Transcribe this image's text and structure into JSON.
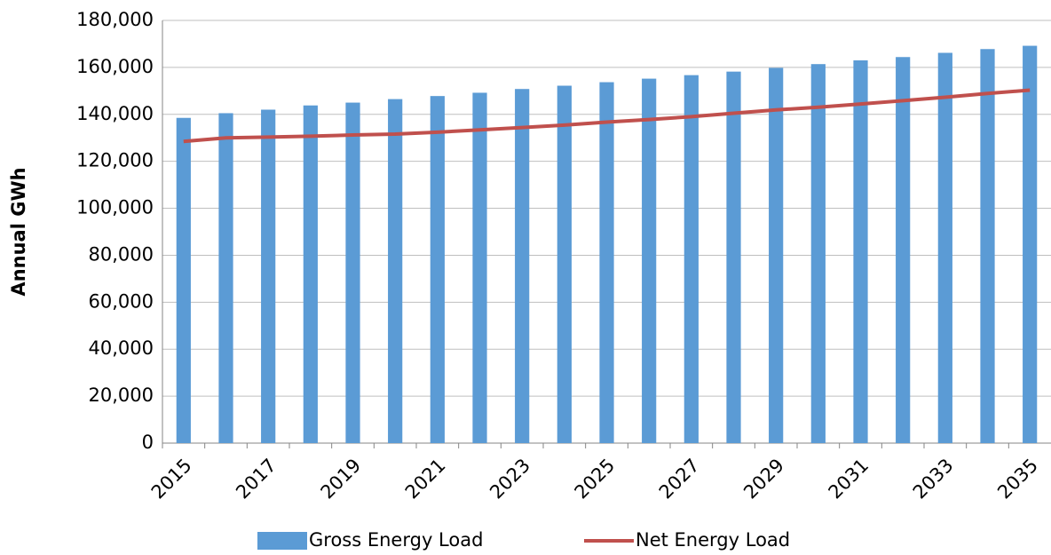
{
  "chart_data": {
    "type": "bar_line",
    "y_label": "Annual GWh",
    "categories": [
      "2015",
      null,
      "2017",
      null,
      "2019",
      null,
      "2021",
      null,
      "2023",
      null,
      "2025",
      null,
      "2027",
      null,
      "2029",
      null,
      "2031",
      null,
      "2033",
      null,
      "2035"
    ],
    "series": [
      {
        "name": "Gross Energy Load",
        "type": "bar",
        "color": "#5b9bd5",
        "values": [
          138500,
          140500,
          142000,
          143800,
          145000,
          146500,
          147800,
          149200,
          150800,
          152200,
          153700,
          155200,
          156700,
          158200,
          159800,
          161400,
          163000,
          164400,
          166200,
          167800,
          169200
        ]
      },
      {
        "name": "Net Energy Load",
        "type": "line",
        "color": "#c0504d",
        "values": [
          128500,
          130000,
          130300,
          130700,
          131200,
          131600,
          132400,
          133400,
          134400,
          135400,
          136700,
          137800,
          139000,
          140500,
          141900,
          143000,
          144400,
          145800,
          147300,
          148900,
          150300
        ]
      }
    ],
    "ylim": [
      0,
      180000
    ],
    "yticks": [
      0,
      {
        "value": 20000,
        "label": "20,000"
      },
      {
        "value": 40000,
        "label": "40,000"
      },
      {
        "value": 60000,
        "label": "60,000"
      },
      {
        "value": 80000,
        "label": "80,000"
      },
      {
        "value": 100000,
        "label": "100,000"
      },
      {
        "value": 120000,
        "label": "120,000"
      },
      {
        "value": 140000,
        "label": "140,000"
      },
      {
        "value": 160000,
        "label": "160,000"
      },
      {
        "value": 180000,
        "label": "180,000"
      }
    ],
    "grid": true,
    "legend": "bottom"
  }
}
